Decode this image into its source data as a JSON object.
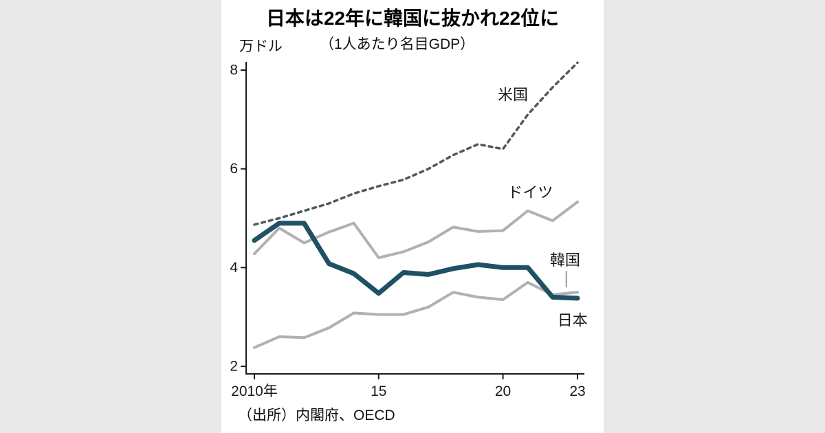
{
  "chart_data": {
    "type": "line",
    "title": "日本は22年に韓国に抜かれ22位に",
    "subtitle": "（1人あたり名目GDP）",
    "unit_label": "万ドル",
    "xlabel": "",
    "ylabel": "万ドル",
    "ylim": [
      2,
      8.4
    ],
    "grid": false,
    "legend_position": "inline-labels",
    "x": [
      2010,
      2011,
      2012,
      2013,
      2014,
      2015,
      2016,
      2017,
      2018,
      2019,
      2020,
      2021,
      2022,
      2023
    ],
    "yticks": [
      2,
      4,
      6,
      8
    ],
    "xticks": [
      {
        "value": 2010,
        "label": "2010年"
      },
      {
        "value": 2015,
        "label": "15"
      },
      {
        "value": 2020,
        "label": "20"
      },
      {
        "value": 2023,
        "label": "23"
      }
    ],
    "series": [
      {
        "id": "germany",
        "name": "ドイツ",
        "style": "solid",
        "color": "#b1b1b1",
        "width": 4,
        "values": [
          4.28,
          4.8,
          4.5,
          4.72,
          4.9,
          4.2,
          4.32,
          4.52,
          4.82,
          4.73,
          4.75,
          5.15,
          4.95,
          5.33
        ]
      },
      {
        "id": "korea",
        "name": "韓国",
        "style": "solid",
        "color": "#b1b1b1",
        "width": 4,
        "values": [
          2.38,
          2.6,
          2.58,
          2.78,
          3.08,
          3.05,
          3.05,
          3.2,
          3.5,
          3.4,
          3.35,
          3.7,
          3.45,
          3.5
        ]
      },
      {
        "id": "us",
        "name": "米国",
        "style": "dashed",
        "color": "#4f5a5f",
        "width": 3.5,
        "values": [
          4.87,
          5.0,
          5.15,
          5.3,
          5.5,
          5.65,
          5.78,
          6.0,
          6.28,
          6.5,
          6.4,
          7.1,
          7.65,
          8.15
        ]
      },
      {
        "id": "japan",
        "name": "日本",
        "style": "solid",
        "color": "#1f5064",
        "width": 7,
        "values": [
          4.55,
          4.9,
          4.9,
          4.08,
          3.88,
          3.48,
          3.9,
          3.86,
          3.98,
          4.06,
          4.0,
          4.0,
          3.4,
          3.38
        ]
      }
    ],
    "annotations": [
      {
        "id": "us",
        "text": "米国",
        "year": 2020.4,
        "value": 7.5
      },
      {
        "id": "germany",
        "text": "ドイツ",
        "year": 2021.1,
        "value": 5.52
      },
      {
        "id": "korea",
        "text": "韓国",
        "year": 2022.5,
        "value": 4.15
      },
      {
        "id": "japan",
        "text": "日本",
        "year": 2022.8,
        "value": 2.93
      }
    ],
    "leader": {
      "year": 2022.55,
      "from": 3.93,
      "to": 3.6,
      "color": "#9a9a9a"
    },
    "source": "（出所）内閣府、OECD"
  }
}
